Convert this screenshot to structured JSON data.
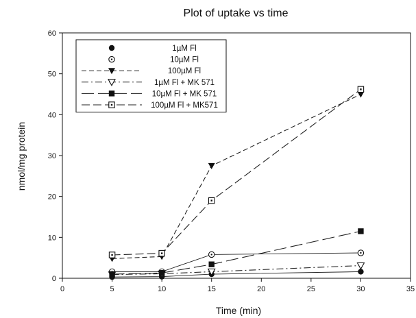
{
  "chart_data": {
    "type": "line",
    "title": "Plot of uptake vs time",
    "xlabel": "Time (min)",
    "ylabel": "nmol/mg protein",
    "xlim": [
      0,
      35
    ],
    "ylim": [
      0,
      60
    ],
    "x_ticks": [
      "0",
      "5",
      "10",
      "15",
      "20",
      "25",
      "30",
      "35"
    ],
    "y_ticks": [
      "0",
      "10",
      "20",
      "30",
      "40",
      "50",
      "60"
    ],
    "grid": false,
    "legend_position": "top-left",
    "x": [
      5,
      10,
      15,
      30
    ],
    "series": [
      {
        "name": "1µM Fl",
        "marker": "circle-filled",
        "line": "none",
        "values": [
          0.3,
          0.4,
          1.0,
          1.6
        ]
      },
      {
        "name": "10µM Fl",
        "marker": "circle-dot",
        "line": "none",
        "values": [
          1.6,
          1.6,
          5.8,
          6.2
        ]
      },
      {
        "name": "100µM Fl",
        "marker": "triangle-down-filled",
        "line": "dashed-short",
        "values": [
          4.8,
          5.3,
          27.5,
          45.0
        ]
      },
      {
        "name": "1µM Fl + MK 571",
        "marker": "triangle-down-open",
        "line": "dash-dot",
        "values": [
          0.9,
          1.1,
          1.6,
          3.1
        ]
      },
      {
        "name": "10µM Fl + MK 571",
        "marker": "square-filled",
        "line": "dashed-long",
        "values": [
          1.0,
          1.3,
          3.4,
          11.5
        ]
      },
      {
        "name": "100µM Fl + MK571",
        "marker": "square-dot",
        "line": "dashed-medium",
        "values": [
          5.7,
          6.1,
          19.0,
          46.2
        ]
      }
    ]
  }
}
